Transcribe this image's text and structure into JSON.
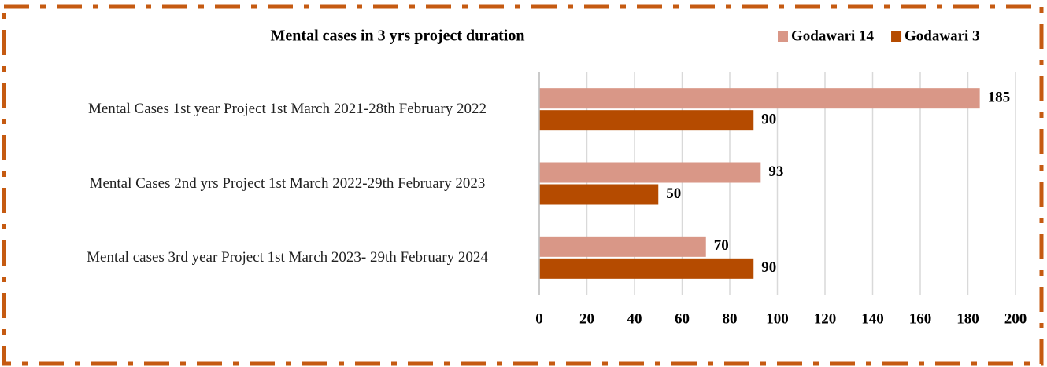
{
  "chart_data": {
    "type": "hbar",
    "title": "Mental cases in 3 yrs project duration",
    "categories": [
      "Mental Cases 1st year  Project 1st March 2021-28th February 2022",
      "Mental Cases 2nd yrs Project 1st March 2022-29th February 2023",
      "Mental cases 3rd year Project 1st March 2023- 29th February 2024"
    ],
    "series": [
      {
        "name": "Godawari 14",
        "color": "#d99787",
        "values": [
          185,
          93,
          70
        ]
      },
      {
        "name": "Godawari 3",
        "color": "#b54b00",
        "values": [
          90,
          50,
          90
        ]
      }
    ],
    "xlim": [
      0,
      200
    ],
    "xticks": [
      0,
      20,
      40,
      60,
      80,
      100,
      120,
      140,
      160,
      180,
      200
    ],
    "grid": true,
    "legend": "top-right"
  }
}
